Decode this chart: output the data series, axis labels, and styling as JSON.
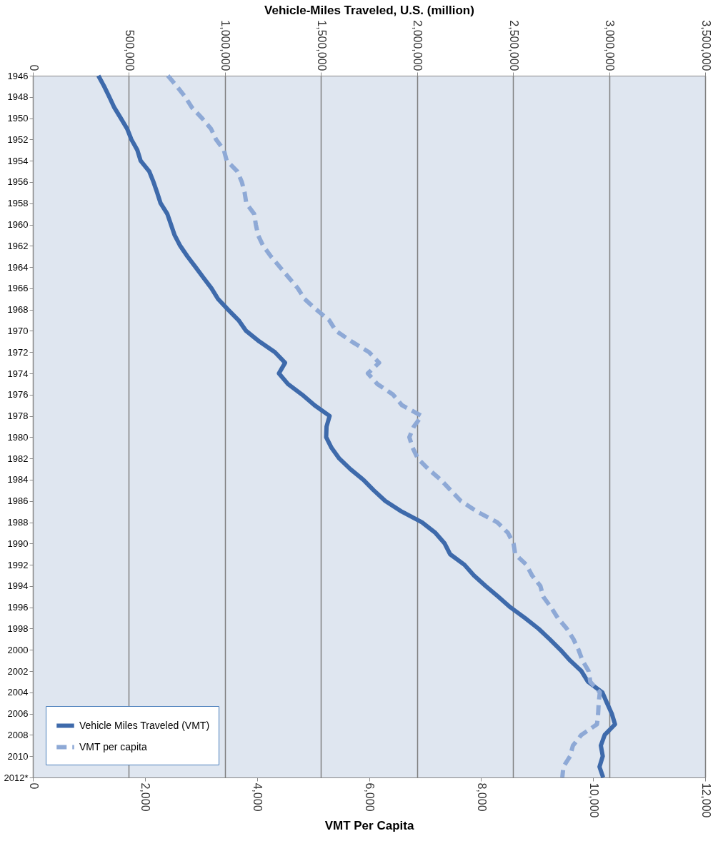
{
  "chart_data": {
    "type": "line",
    "orientation": "horizontal",
    "x2label": "Vehicle-Miles Traveled, U.S. (million)",
    "xlabel": "VMT Per Capita",
    "categories": [
      "1946",
      null,
      "1948",
      null,
      "1950",
      null,
      "1952",
      null,
      "1954",
      null,
      "1956",
      null,
      "1958",
      null,
      "1960",
      null,
      "1962",
      null,
      "1964",
      null,
      "1966",
      null,
      "1968",
      null,
      "1970",
      null,
      "1972",
      null,
      "1974",
      null,
      "1976",
      null,
      "1978",
      null,
      "1980",
      null,
      "1982",
      null,
      "1984",
      null,
      "1986",
      null,
      "1988",
      null,
      "1990",
      null,
      "1992",
      null,
      "1994",
      null,
      "1996",
      null,
      "1998",
      null,
      "2000",
      null,
      "2002",
      null,
      "2004",
      null,
      "2006",
      null,
      "2008",
      null,
      "2010",
      null,
      "2012*"
    ],
    "series": [
      {
        "name": "Vehicle Miles Traveled (VMT)",
        "color": "#3e6aab",
        "axis": "x2",
        "line_style": "solid",
        "values": [
          341000,
          371000,
          398000,
          424000,
          458000,
          491000,
          513000,
          544000,
          561000,
          606000,
          628000,
          647000,
          665000,
          700000,
          719000,
          738000,
          767000,
          805000,
          847000,
          888000,
          930000,
          964000,
          1016000,
          1071000,
          1110000,
          1179000,
          1260000,
          1313000,
          1281000,
          1328000,
          1402000,
          1467000,
          1545000,
          1529000,
          1527000,
          1555000,
          1595000,
          1653000,
          1720000,
          1775000,
          1835000,
          1921000,
          2026000,
          2096000,
          2144000,
          2172000,
          2247000,
          2296000,
          2358000,
          2423000,
          2486000,
          2562000,
          2632000,
          2691000,
          2747000,
          2797000,
          2856000,
          2890000,
          2965000,
          2989000,
          3014000,
          3031000,
          2977000,
          2957000,
          2967000,
          2950000,
          2969000
        ]
      },
      {
        "name": "VMT per capita",
        "color": "#8ea9d6",
        "line_style": "dashed",
        "values": [
          2410,
          2570,
          2720,
          2840,
          3020,
          3180,
          3270,
          3410,
          3460,
          3650,
          3730,
          3780,
          3810,
          3950,
          3980,
          4020,
          4110,
          4250,
          4410,
          4570,
          4730,
          4850,
          5060,
          5290,
          5410,
          5690,
          6000,
          6180,
          5980,
          6150,
          6430,
          6590,
          6940,
          6800,
          6720,
          6780,
          6870,
          7060,
          7280,
          7460,
          7640,
          7930,
          8290,
          8480,
          8580,
          8610,
          8810,
          8910,
          9060,
          9110,
          9250,
          9370,
          9530,
          9650,
          9740,
          9810,
          9920,
          9950,
          10120,
          10100,
          10090,
          10070,
          9790,
          9640,
          9590,
          9470,
          9450
        ]
      }
    ],
    "x2lim": [
      0,
      3500000
    ],
    "x2ticks": [
      0,
      {
        "value": 500000,
        "label": "500,000"
      },
      {
        "value": 1000000,
        "label": "1,000,000"
      },
      {
        "value": 1500000,
        "label": "1,500,000"
      },
      {
        "value": 2000000,
        "label": "2,000,000"
      },
      {
        "value": 2500000,
        "label": "2,500,000"
      },
      {
        "value": 3000000,
        "label": "3,000,000"
      },
      {
        "value": 3500000,
        "label": "3,500,000"
      }
    ],
    "xlim": [
      0,
      12000
    ],
    "xticks": [
      0,
      {
        "value": 2000,
        "label": "2,000"
      },
      {
        "value": 4000,
        "label": "4,000"
      },
      {
        "value": 6000,
        "label": "6,000"
      },
      {
        "value": 8000,
        "label": "8,000"
      },
      {
        "value": 10000,
        "label": "10,000"
      },
      {
        "value": 12000,
        "label": "12,000"
      }
    ],
    "grid": "x",
    "legend": "bottom left",
    "marker": "none"
  }
}
